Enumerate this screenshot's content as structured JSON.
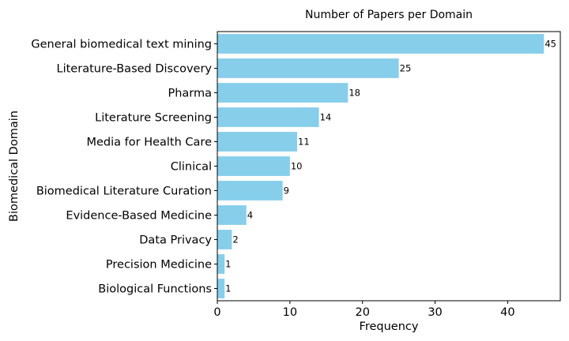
{
  "chart_data": {
    "type": "bar",
    "orientation": "horizontal",
    "title": "Number of Papers per Domain",
    "xlabel": "Frequency",
    "ylabel": "Biomedical Domain",
    "categories": [
      "General biomedical text mining",
      "Literature-Based Discovery",
      "Pharma",
      "Literature Screening",
      "Media for Health Care",
      "Clinical",
      "Biomedical Literature Curation",
      "Evidence-Based Medicine",
      "Data Privacy",
      "Precision Medicine",
      "Biological Functions"
    ],
    "values": [
      45,
      25,
      18,
      14,
      11,
      10,
      9,
      4,
      2,
      1,
      1
    ],
    "xlim": [
      0,
      47.25
    ],
    "xticks": [
      0,
      10,
      20,
      30,
      40
    ],
    "grid": false,
    "bar_color": "#87ceeb",
    "data_labels": true
  }
}
